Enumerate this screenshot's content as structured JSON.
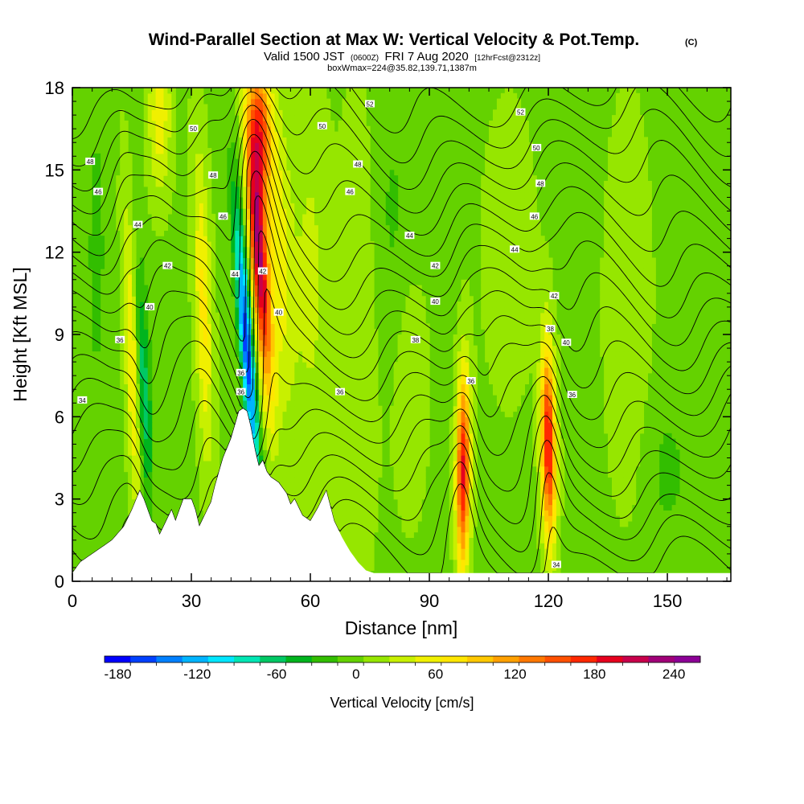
{
  "chart_data": {
    "type": "heatmap",
    "title": "Wind-Parallel Section at Max W: Vertical Velocity & Pot.Temp.",
    "title_suffix": "(C)",
    "subtitle": {
      "a": "Valid 1500 JST",
      "b": "(0600Z)",
      "c": "FRI 7 Aug 2020",
      "d": "[12hrFcst@2312z]"
    },
    "subtitle2": "boxWmax=224@35.82,139.71,1387m",
    "xlabel": "Distance [nm]",
    "ylabel": "Height [Kft MSL]",
    "xlim": [
      0,
      166
    ],
    "ylim": [
      0,
      18
    ],
    "xticks": [
      0,
      30,
      60,
      90,
      120,
      150
    ],
    "yticks": [
      0,
      3,
      6,
      9,
      12,
      15,
      18
    ],
    "colorbar": {
      "label": "Vertical Velocity [cm/s]",
      "min": -190,
      "max": 260,
      "step": 20,
      "tick_values": [
        -180,
        -120,
        -60,
        0,
        60,
        120,
        180,
        240
      ],
      "colors": [
        "#0000ff",
        "#0040ff",
        "#0080ff",
        "#00b4ff",
        "#00e6ff",
        "#00e6b4",
        "#00c864",
        "#00b41e",
        "#32be00",
        "#64d200",
        "#96e600",
        "#c8f000",
        "#f0f000",
        "#ffe600",
        "#ffc800",
        "#ffa000",
        "#ff7800",
        "#ff5000",
        "#ff2800",
        "#e6001e",
        "#c8004b",
        "#a00078",
        "#8c0096"
      ]
    },
    "background_w": 5,
    "terrain": {
      "x": [
        0,
        2,
        6,
        10,
        13,
        15,
        17,
        18,
        19,
        20,
        21,
        22,
        23,
        24,
        25,
        26,
        27,
        28,
        30,
        31,
        32,
        33,
        34,
        35,
        36,
        37,
        38,
        40,
        41,
        42,
        43,
        44,
        45,
        46,
        47,
        48,
        49,
        50,
        52,
        54,
        55,
        56,
        58,
        60,
        62,
        64,
        66,
        68,
        70,
        72,
        74,
        76,
        80,
        100,
        120,
        140,
        150,
        160,
        166
      ],
      "y": [
        0.3,
        0.7,
        1.1,
        1.5,
        2.0,
        2.6,
        3.3,
        3.0,
        2.6,
        2.2,
        2.1,
        1.7,
        2.0,
        2.3,
        2.6,
        2.2,
        2.6,
        3.0,
        3.0,
        2.6,
        2.0,
        2.3,
        2.6,
        2.9,
        3.5,
        4.0,
        4.5,
        5.2,
        5.7,
        6.2,
        6.3,
        6.2,
        5.6,
        4.8,
        4.2,
        4.4,
        4.0,
        3.8,
        3.6,
        3.2,
        2.8,
        3.0,
        2.4,
        2.2,
        2.7,
        3.3,
        2.2,
        1.6,
        1.1,
        0.7,
        0.4,
        0.3,
        0.3,
        0.3,
        0.3,
        0.3,
        0.3,
        0.3,
        0.3
      ]
    },
    "w_features": [
      {
        "xc": 47,
        "yc": 12.0,
        "sx": 1.5,
        "sy": 3.5,
        "amp": 220,
        "slope": -0.45
      },
      {
        "xc": 47.5,
        "yc": 16.5,
        "sx": 1.8,
        "sy": 1.8,
        "amp": 150,
        "slope": -0.2
      },
      {
        "xc": 44,
        "yc": 8.5,
        "sx": 1.2,
        "sy": 3.5,
        "amp": -170,
        "slope": -0.5
      },
      {
        "xc": 52,
        "yc": 12,
        "sx": 2.5,
        "sy": 4,
        "amp": 60,
        "slope": -0.2
      },
      {
        "xc": 98.5,
        "yc": 4.0,
        "sx": 1.2,
        "sy": 2.5,
        "amp": 190,
        "slope": 0.05
      },
      {
        "xc": 120,
        "yc": 5.0,
        "sx": 1.3,
        "sy": 2.5,
        "amp": 190,
        "slope": -0.1
      },
      {
        "xc": 18,
        "yc": 7,
        "sx": 1.2,
        "sy": 3,
        "amp": -70,
        "slope": -0.25
      },
      {
        "xc": 15,
        "yc": 8,
        "sx": 1.2,
        "sy": 4,
        "amp": 70,
        "slope": -0.25
      },
      {
        "xc": 33,
        "yc": 10,
        "sx": 1.5,
        "sy": 4,
        "amp": 70,
        "slope": -0.2
      },
      {
        "xc": 22,
        "yc": 17,
        "sx": 2,
        "sy": 2,
        "amp": 60,
        "slope": 0
      },
      {
        "xc": 60,
        "yc": 11,
        "sx": 3,
        "sy": 5,
        "amp": 30,
        "slope": 0
      },
      {
        "xc": 72,
        "yc": 9,
        "sx": 4,
        "sy": 6,
        "amp": 25,
        "slope": 0.1
      },
      {
        "xc": 85,
        "yc": 7,
        "sx": 3,
        "sy": 3,
        "amp": 25,
        "slope": 0
      },
      {
        "xc": 110,
        "yc": 12,
        "sx": 5,
        "sy": 4,
        "amp": 15,
        "slope": 0
      },
      {
        "xc": 140,
        "yc": 10,
        "sx": 4,
        "sy": 5,
        "amp": 20,
        "slope": 0
      },
      {
        "xc": 6,
        "yc": 12,
        "sx": 2,
        "sy": 5,
        "amp": -20,
        "slope": 0
      },
      {
        "xc": 80,
        "yc": 13,
        "sx": 4,
        "sy": 4,
        "amp": -20,
        "slope": 0
      },
      {
        "xc": 150,
        "yc": 4,
        "sx": 4,
        "sy": 2,
        "amp": -20,
        "slope": 0
      }
    ],
    "theta_levels": [
      34,
      35,
      36,
      37,
      38,
      39,
      40,
      41,
      42,
      43,
      44,
      45,
      46,
      47,
      48,
      49,
      50,
      51,
      52
    ],
    "contour_labels": [
      {
        "text": "34",
        "x": 2.5,
        "y": 6.6
      },
      {
        "text": "36",
        "x": 12,
        "y": 8.8
      },
      {
        "text": "40",
        "x": 19.5,
        "y": 10.0
      },
      {
        "text": "42",
        "x": 24,
        "y": 11.5
      },
      {
        "text": "44",
        "x": 16.5,
        "y": 13.0
      },
      {
        "text": "46",
        "x": 6.5,
        "y": 14.2
      },
      {
        "text": "48",
        "x": 4.5,
        "y": 15.3
      },
      {
        "text": "50",
        "x": 30.5,
        "y": 16.5
      },
      {
        "text": "48",
        "x": 35.5,
        "y": 14.8
      },
      {
        "text": "46",
        "x": 38,
        "y": 13.3
      },
      {
        "text": "44",
        "x": 41,
        "y": 11.2
      },
      {
        "text": "42",
        "x": 48,
        "y": 11.3
      },
      {
        "text": "40",
        "x": 52,
        "y": 9.8
      },
      {
        "text": "36",
        "x": 42.5,
        "y": 7.6
      },
      {
        "text": "36",
        "x": 42.5,
        "y": 6.9
      },
      {
        "text": "36",
        "x": 67.5,
        "y": 6.9
      },
      {
        "text": "38",
        "x": 86.5,
        "y": 8.8
      },
      {
        "text": "40",
        "x": 91.5,
        "y": 10.2
      },
      {
        "text": "42",
        "x": 91.5,
        "y": 11.5
      },
      {
        "text": "44",
        "x": 85,
        "y": 12.6
      },
      {
        "text": "46",
        "x": 70,
        "y": 14.2
      },
      {
        "text": "48",
        "x": 72,
        "y": 15.2
      },
      {
        "text": "50",
        "x": 63,
        "y": 16.6
      },
      {
        "text": "52",
        "x": 75,
        "y": 17.4
      },
      {
        "text": "52",
        "x": 113,
        "y": 17.1
      },
      {
        "text": "50",
        "x": 117,
        "y": 15.8
      },
      {
        "text": "48",
        "x": 118,
        "y": 14.5
      },
      {
        "text": "46",
        "x": 116.5,
        "y": 13.3
      },
      {
        "text": "44",
        "x": 111.5,
        "y": 12.1
      },
      {
        "text": "42",
        "x": 121.5,
        "y": 10.4
      },
      {
        "text": "38",
        "x": 120.5,
        "y": 9.2
      },
      {
        "text": "40",
        "x": 124.5,
        "y": 8.7
      },
      {
        "text": "36",
        "x": 126,
        "y": 6.8
      },
      {
        "text": "36",
        "x": 100.5,
        "y": 7.3
      },
      {
        "text": "34",
        "x": 122,
        "y": 0.6
      }
    ]
  }
}
